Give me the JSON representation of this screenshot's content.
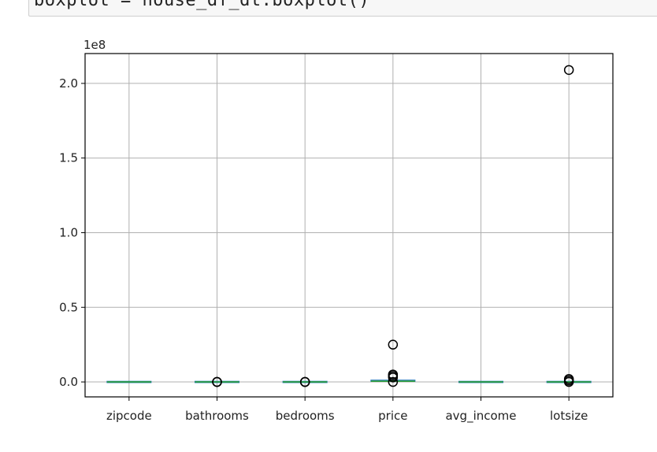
{
  "code": {
    "line": "boxplot = house_df_dt.boxplot()"
  },
  "chart_data": {
    "type": "boxplot",
    "scale_label": "1e8",
    "ylim": [
      -0.1,
      2.2
    ],
    "yticks": [
      0.0,
      0.5,
      1.0,
      1.5,
      2.0
    ],
    "ytick_labels": [
      "0.0",
      "0.5",
      "1.0",
      "1.5",
      "2.0"
    ],
    "grid": true,
    "categories": [
      "zipcode",
      "bathrooms",
      "bedrooms",
      "price",
      "avg_income",
      "lotsize"
    ],
    "series": [
      {
        "name": "zipcode",
        "box": [
          0.0,
          0.0,
          0.0,
          0.0,
          0.0
        ],
        "outliers": []
      },
      {
        "name": "bathrooms",
        "box": [
          0.0,
          0.0,
          0.0,
          0.0,
          0.0
        ],
        "outliers": [
          0.0,
          0.0,
          0.0
        ]
      },
      {
        "name": "bedrooms",
        "box": [
          0.0,
          0.0,
          0.0,
          0.0,
          0.0
        ],
        "outliers": [
          0.0,
          0.0,
          0.0
        ]
      },
      {
        "name": "price",
        "box": [
          0.0,
          0.003,
          0.005,
          0.008,
          0.02
        ],
        "outliers": [
          0.03,
          0.04,
          0.05,
          0.0,
          0.25
        ]
      },
      {
        "name": "avg_income",
        "box": [
          0.0,
          0.0,
          0.0,
          0.0,
          0.0
        ],
        "outliers": []
      },
      {
        "name": "lotsize",
        "box": [
          0.0,
          0.0,
          0.0,
          0.0,
          0.0
        ],
        "outliers": [
          0.0,
          0.01,
          0.02,
          2.09
        ]
      }
    ],
    "colors": {
      "box": "#1f77b4",
      "median": "#2ca02c",
      "grid": "#b0b0b0",
      "flier": "#000000"
    }
  }
}
